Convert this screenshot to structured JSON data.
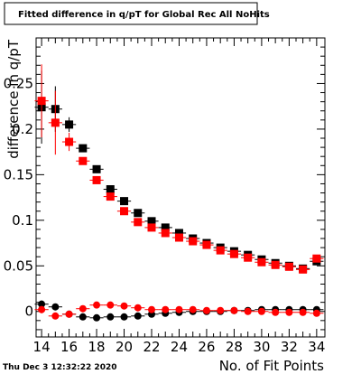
{
  "chart_data": {
    "type": "scatter",
    "title": "Fitted difference in q/pT for Global Rec All NoHits",
    "xlabel": "No. of Fit Points",
    "ylabel": "difference in q/pT",
    "xlim": [
      13.6,
      34.6
    ],
    "ylim": [
      -0.028,
      0.3
    ],
    "x_ticks": [
      14,
      16,
      18,
      20,
      22,
      24,
      26,
      28,
      30,
      32,
      34
    ],
    "y_ticks": [
      0,
      0.05,
      0.1,
      0.15,
      0.2,
      0.25
    ],
    "y_tick_labels": [
      "0",
      "0.05",
      "0.1",
      "0.15",
      "0.2",
      "0.25"
    ],
    "grid": false,
    "legend": "none",
    "footer_date": "Thu Dec  3 12:32:22 2020",
    "series": [
      {
        "color": "#000000",
        "marker": "square",
        "x": [
          14,
          15,
          16,
          17,
          18,
          19,
          20,
          21,
          22,
          23,
          24,
          25,
          26,
          27,
          28,
          29,
          30,
          31,
          32,
          33,
          34
        ],
        "y": [
          0.224,
          0.222,
          0.205,
          0.179,
          0.156,
          0.134,
          0.121,
          0.108,
          0.099,
          0.092,
          0.086,
          0.08,
          0.075,
          0.07,
          0.066,
          0.062,
          0.057,
          0.053,
          0.05,
          0.047,
          0.055
        ],
        "err": [
          0.04,
          0.025,
          0.008,
          0.004,
          0.003,
          0.002,
          0.002,
          0.002,
          0.002,
          0.002,
          0.002,
          0.002,
          0.002,
          0.002,
          0.002,
          0.002,
          0.002,
          0.002,
          0.002,
          0.002,
          0.003
        ]
      },
      {
        "color": "#ff0000",
        "marker": "square",
        "x": [
          14,
          15,
          16,
          17,
          18,
          19,
          20,
          21,
          22,
          23,
          24,
          25,
          26,
          27,
          28,
          29,
          30,
          31,
          32,
          33,
          34
        ],
        "y": [
          0.231,
          0.207,
          0.186,
          0.165,
          0.144,
          0.126,
          0.11,
          0.098,
          0.092,
          0.086,
          0.081,
          0.077,
          0.073,
          0.067,
          0.063,
          0.059,
          0.054,
          0.051,
          0.049,
          0.046,
          0.058
        ],
        "err": [
          0.04,
          0.035,
          0.01,
          0.004,
          0.003,
          0.002,
          0.002,
          0.002,
          0.002,
          0.002,
          0.002,
          0.002,
          0.002,
          0.002,
          0.002,
          0.002,
          0.002,
          0.002,
          0.002,
          0.002,
          0.003
        ]
      },
      {
        "color": "#000000",
        "marker": "circle",
        "x": [
          14,
          15,
          16,
          17,
          18,
          19,
          20,
          21,
          22,
          23,
          24,
          25,
          26,
          27,
          28,
          29,
          30,
          31,
          32,
          33,
          34
        ],
        "y": [
          0.008,
          0.005,
          -0.003,
          -0.006,
          -0.007,
          -0.006,
          -0.006,
          -0.005,
          -0.003,
          -0.002,
          -0.001,
          0.0,
          0.0,
          0.0,
          0.001,
          0.001,
          0.002,
          0.002,
          0.002,
          0.002,
          0.002
        ],
        "err": [
          0.004,
          0.003,
          0.002,
          0.002,
          0.002,
          0.001,
          0.001,
          0.001,
          0.001,
          0.001,
          0.001,
          0.001,
          0.001,
          0.001,
          0.001,
          0.001,
          0.001,
          0.001,
          0.001,
          0.001,
          0.001
        ]
      },
      {
        "color": "#ff0000",
        "marker": "circle",
        "x": [
          14,
          15,
          16,
          17,
          18,
          19,
          20,
          21,
          22,
          23,
          24,
          25,
          26,
          27,
          28,
          29,
          30,
          31,
          32,
          33,
          34
        ],
        "y": [
          0.002,
          -0.005,
          -0.003,
          0.003,
          0.007,
          0.007,
          0.006,
          0.004,
          0.002,
          0.002,
          0.002,
          0.002,
          0.001,
          0.001,
          0.001,
          0.0,
          0.0,
          -0.001,
          -0.001,
          -0.001,
          -0.002
        ],
        "err": [
          0.004,
          0.003,
          0.002,
          0.002,
          0.002,
          0.001,
          0.001,
          0.001,
          0.001,
          0.001,
          0.001,
          0.001,
          0.001,
          0.001,
          0.001,
          0.001,
          0.001,
          0.001,
          0.001,
          0.001,
          0.001
        ]
      }
    ]
  }
}
